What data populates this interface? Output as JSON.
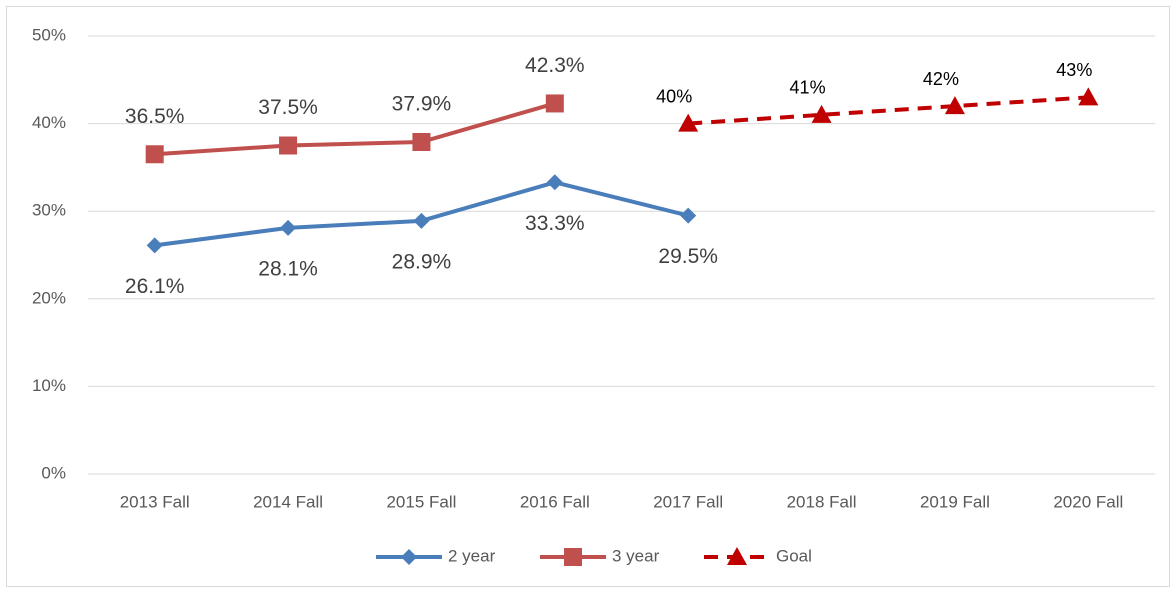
{
  "chart_data": {
    "type": "line",
    "categories": [
      "2013 Fall",
      "2014 Fall",
      "2015 Fall",
      "2016 Fall",
      "2017 Fall",
      "2018 Fall",
      "2019 Fall",
      "2020 Fall"
    ],
    "series": [
      {
        "name": "2 year",
        "color": "#4a7ebb",
        "marker": "diamond",
        "dashed": false,
        "values": [
          26.1,
          28.1,
          28.9,
          33.3,
          29.5,
          null,
          null,
          null
        ],
        "value_labels": [
          "26.1%",
          "28.1%",
          "28.9%",
          "33.3%",
          "29.5%",
          null,
          null,
          null
        ]
      },
      {
        "name": "3 year",
        "color": "#c0504d",
        "marker": "square",
        "dashed": false,
        "values": [
          36.5,
          37.5,
          37.9,
          42.3,
          null,
          null,
          null,
          null
        ],
        "value_labels": [
          "36.5%",
          "37.5%",
          "37.9%",
          "42.3%",
          null,
          null,
          null,
          null
        ]
      },
      {
        "name": "Goal",
        "color": "#c00000",
        "marker": "triangle",
        "dashed": true,
        "values": [
          null,
          null,
          null,
          null,
          40,
          41,
          42,
          43
        ],
        "value_labels": [
          null,
          null,
          null,
          null,
          "40%",
          "41%",
          "42%",
          "43%"
        ]
      }
    ],
    "ylim": [
      0,
      50
    ],
    "yticks": [
      {
        "value": 0,
        "label": "0%"
      },
      {
        "value": 10,
        "label": "10%"
      },
      {
        "value": 20,
        "label": "20%"
      },
      {
        "value": 30,
        "label": "30%"
      },
      {
        "value": 40,
        "label": "40%"
      },
      {
        "value": 50,
        "label": "50%"
      }
    ],
    "grid": true,
    "legend": "bottom"
  }
}
